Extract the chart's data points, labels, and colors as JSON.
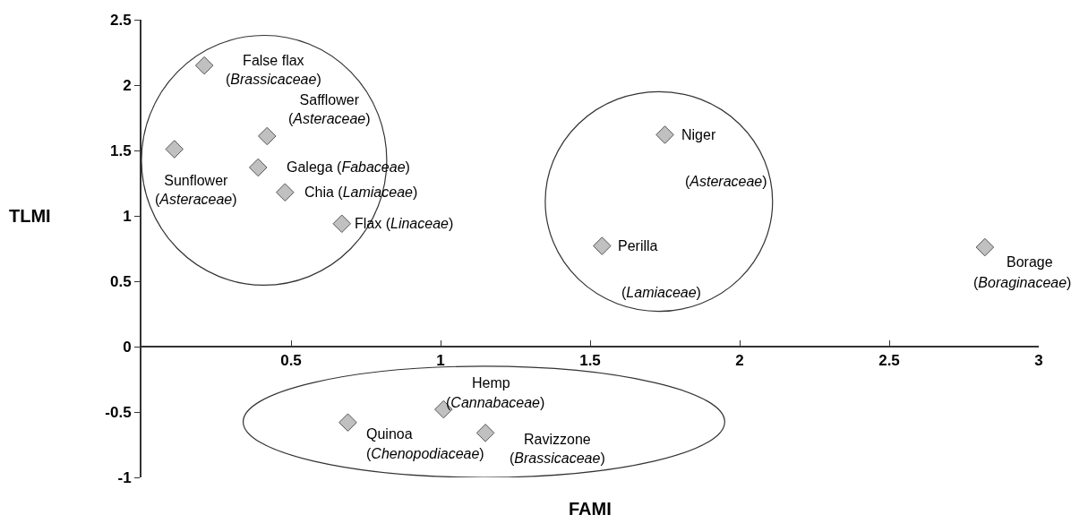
{
  "chart_data": {
    "type": "scatter",
    "xlabel": "FAMI",
    "ylabel": "TLMI",
    "x": [
      0.21,
      0.11,
      0.42,
      0.39,
      0.48,
      0.67,
      1.75,
      1.54,
      2.82,
      0.69,
      1.01,
      1.15
    ],
    "values": [
      2.15,
      1.51,
      1.61,
      1.37,
      1.18,
      0.94,
      1.62,
      0.77,
      0.76,
      -0.58,
      -0.48,
      -0.66
    ],
    "color": "#c0c0c0",
    "marker": "diamond",
    "grid": false,
    "legend": false,
    "xlim": [
      0,
      3.0
    ],
    "xticks": [
      0.5,
      1,
      1.5,
      2,
      2.5,
      3
    ],
    "ylim": [
      -1,
      2.5
    ],
    "yticks": [
      -1,
      -0.5,
      0,
      0.5,
      1,
      1.5,
      2,
      2.5
    ],
    "annotations": [
      {
        "text": "False flax\n(Brassicaceae)",
        "x": 0.21,
        "y": 2.15
      },
      {
        "text": "Sunflower\n(Asteraceae)",
        "x": 0.11,
        "y": 1.51
      },
      {
        "text": "Safflower\n(Asteraceae)",
        "x": 0.42,
        "y": 1.61
      },
      {
        "text": "Galega (Fabaceae)",
        "x": 0.39,
        "y": 1.37
      },
      {
        "text": "Chia (Lamiaceae)",
        "x": 0.48,
        "y": 1.18
      },
      {
        "text": "Flax (Linaceae)",
        "x": 0.67,
        "y": 0.94
      },
      {
        "text": "Niger",
        "x": 1.75,
        "y": 1.62
      },
      "(Asteraceae)",
      {
        "text": "Perilla",
        "x": 1.54,
        "y": 0.77
      },
      "(Lamiaceae)",
      {
        "text": "Borage",
        "x": 2.82,
        "y": 0.76
      },
      "(Boraginaceae)",
      {
        "text": "Quinoa",
        "x": 0.69,
        "y": -0.58
      },
      "(Chenopodiaceae)",
      {
        "text": "Hemp",
        "x": 1.01,
        "y": -0.48
      },
      "(Cannabaceae)",
      {
        "text": "Ravizzone\n(Brassicaceae)",
        "x": 1.15,
        "y": -0.66
      }
    ]
  }
}
